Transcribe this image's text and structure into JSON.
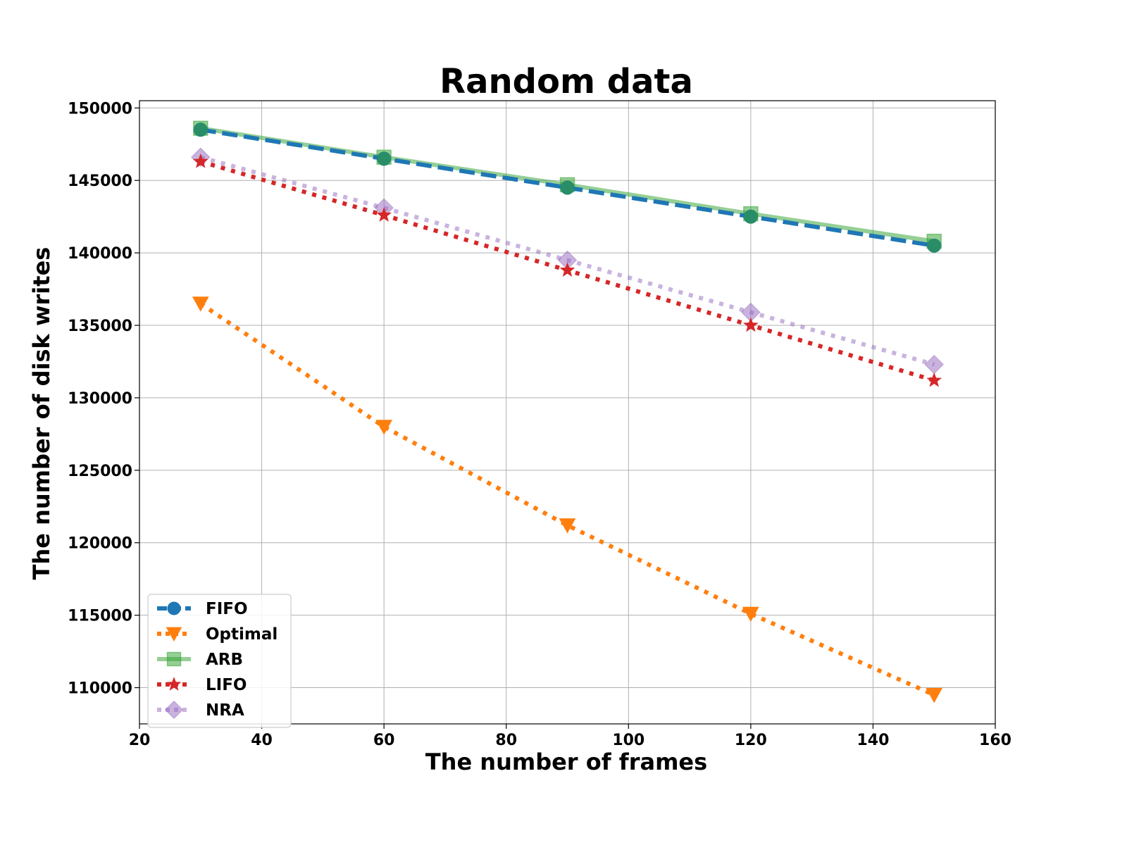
{
  "chart_data": {
    "type": "line",
    "title": "Random data",
    "xlabel": "The number of frames",
    "ylabel": "The number of disk writes",
    "xlim": [
      20,
      160
    ],
    "ylim": [
      107500,
      150500
    ],
    "xticks": [
      20,
      40,
      60,
      80,
      100,
      120,
      140,
      160
    ],
    "yticks": [
      110000,
      115000,
      120000,
      125000,
      130000,
      135000,
      140000,
      145000,
      150000
    ],
    "grid": true,
    "legend_position": "lower-left",
    "x": [
      30,
      60,
      90,
      120,
      150
    ],
    "series": [
      {
        "name": "FIFO",
        "values": [
          148500,
          146500,
          144500,
          142500,
          140500
        ],
        "color": "#1f77b4",
        "linestyle": "dashed",
        "marker": "circle"
      },
      {
        "name": "Optimal",
        "values": [
          136500,
          128000,
          121200,
          115100,
          109500
        ],
        "color": "#ff7f0e",
        "linestyle": "dotted",
        "marker": "triangle-down"
      },
      {
        "name": "ARB",
        "values": [
          148600,
          146600,
          144700,
          142700,
          140800
        ],
        "color": "#2ca02c",
        "linestyle": "solid",
        "marker": "square",
        "alpha": 0.5
      },
      {
        "name": "LIFO",
        "values": [
          146300,
          142600,
          138800,
          135000,
          131200
        ],
        "color": "#d62728",
        "linestyle": "dotted",
        "marker": "star"
      },
      {
        "name": "NRA",
        "values": [
          146600,
          143100,
          139500,
          135900,
          132300
        ],
        "color": "#9467bd",
        "linestyle": "dotted",
        "marker": "diamond",
        "alpha": 0.5
      }
    ]
  }
}
